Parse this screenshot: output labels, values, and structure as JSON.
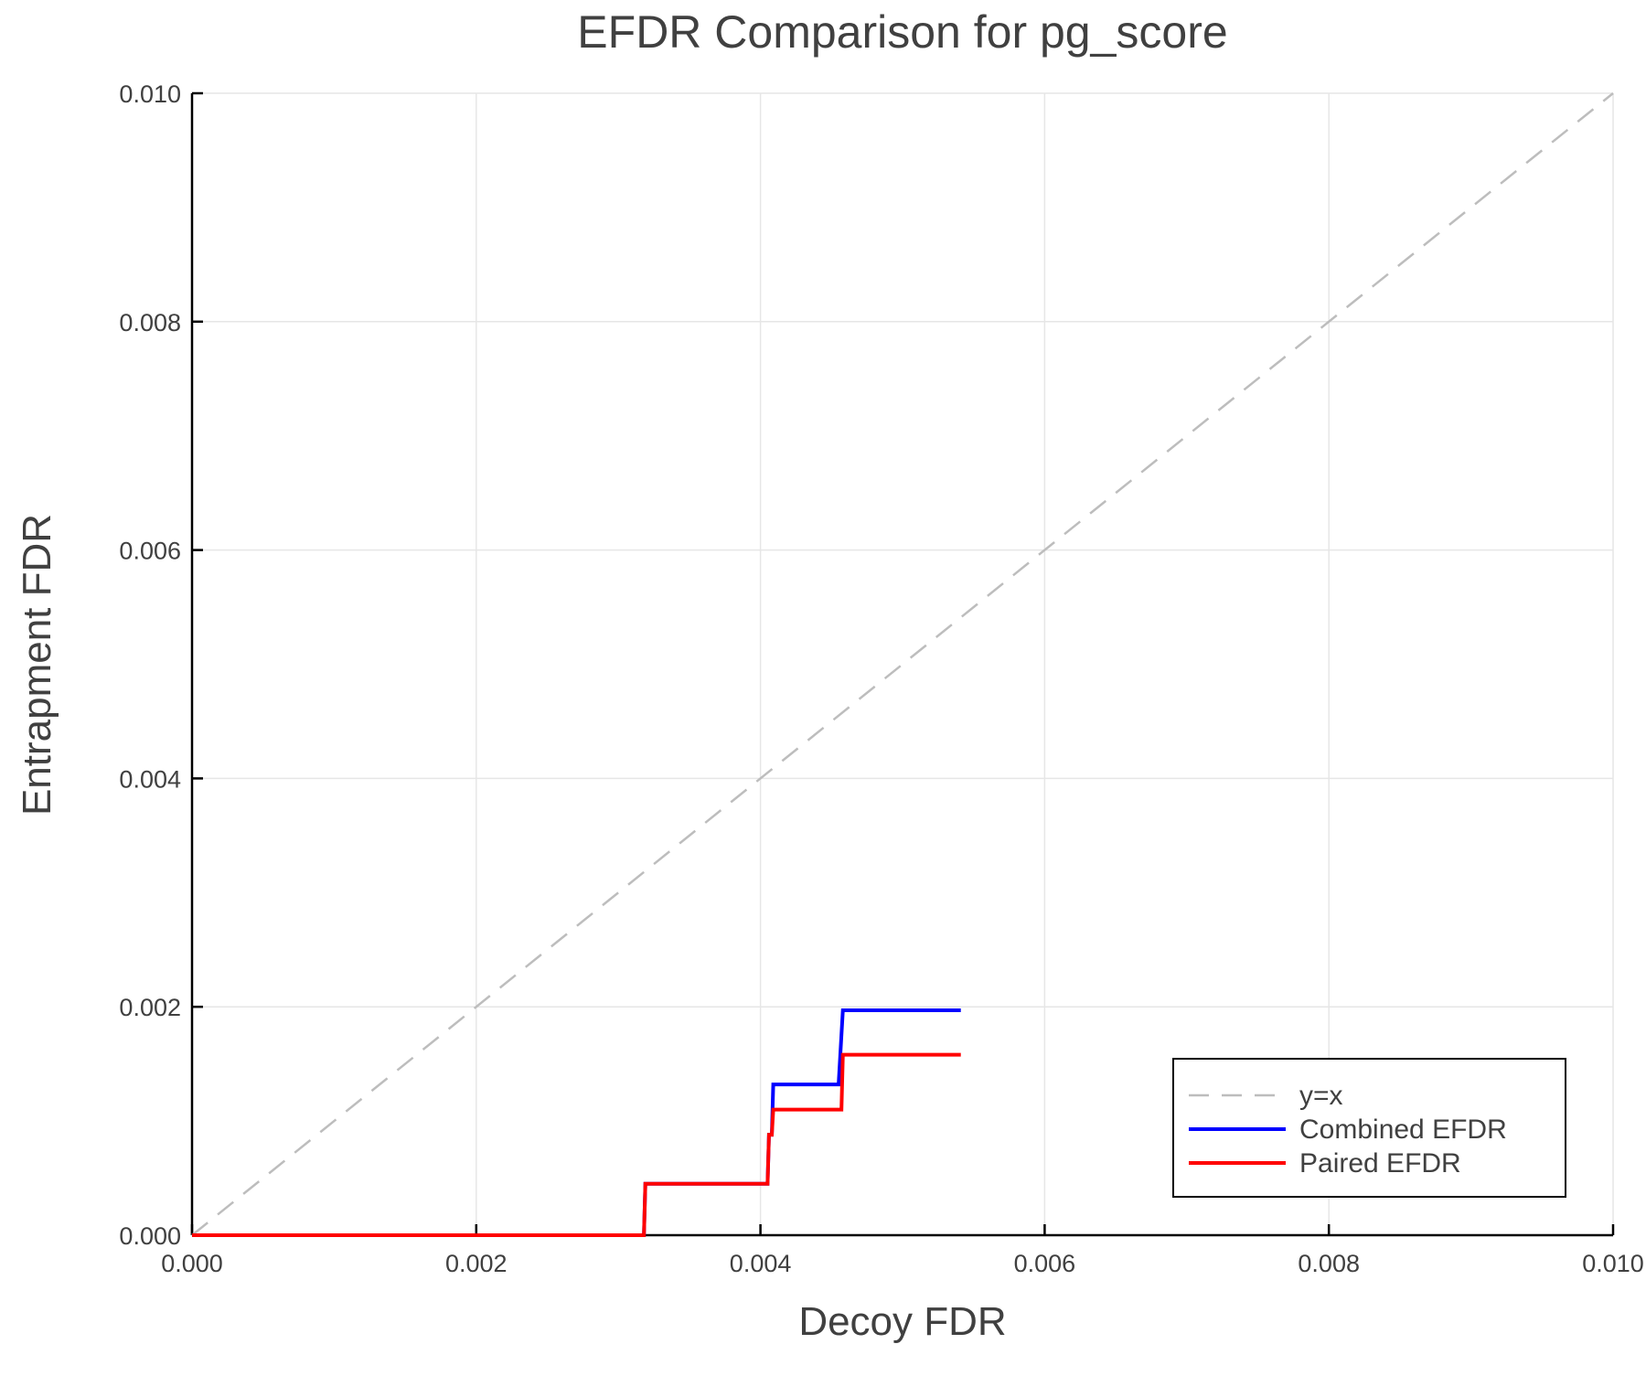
{
  "chart_data": {
    "type": "line",
    "title": "EFDR Comparison for pg_score",
    "xlabel": "Decoy FDR",
    "ylabel": "Entrapment FDR",
    "xlim": [
      0,
      0.01
    ],
    "ylim": [
      0,
      0.01
    ],
    "xticks": [
      "0.000",
      "0.002",
      "0.004",
      "0.006",
      "0.008",
      "0.010"
    ],
    "yticks": [
      "0.000",
      "0.002",
      "0.004",
      "0.006",
      "0.008",
      "0.010"
    ],
    "grid": true,
    "legend_position": "bottom-right",
    "series": [
      {
        "name": "y=x",
        "color": "#bdbdbd",
        "dashed": true,
        "x": [
          0,
          0.01
        ],
        "y": [
          0,
          0.01
        ]
      },
      {
        "name": "Combined EFDR",
        "color": "#0000ff",
        "dashed": false,
        "x": [
          0,
          0.00318,
          0.00319,
          0.00405,
          0.00406,
          0.00408,
          0.00409,
          0.00455,
          0.00458,
          0.00541
        ],
        "y": [
          0,
          0,
          0.00045,
          0.00045,
          0.00088,
          0.00088,
          0.00132,
          0.00132,
          0.00197,
          0.00197
        ]
      },
      {
        "name": "Paired EFDR",
        "color": "#ff0000",
        "dashed": false,
        "x": [
          0,
          0.00318,
          0.00319,
          0.00405,
          0.00406,
          0.00408,
          0.00409,
          0.00457,
          0.00458,
          0.00541
        ],
        "y": [
          0,
          0,
          0.00045,
          0.00045,
          0.00088,
          0.00088,
          0.0011,
          0.0011,
          0.00158,
          0.00158
        ]
      }
    ]
  }
}
